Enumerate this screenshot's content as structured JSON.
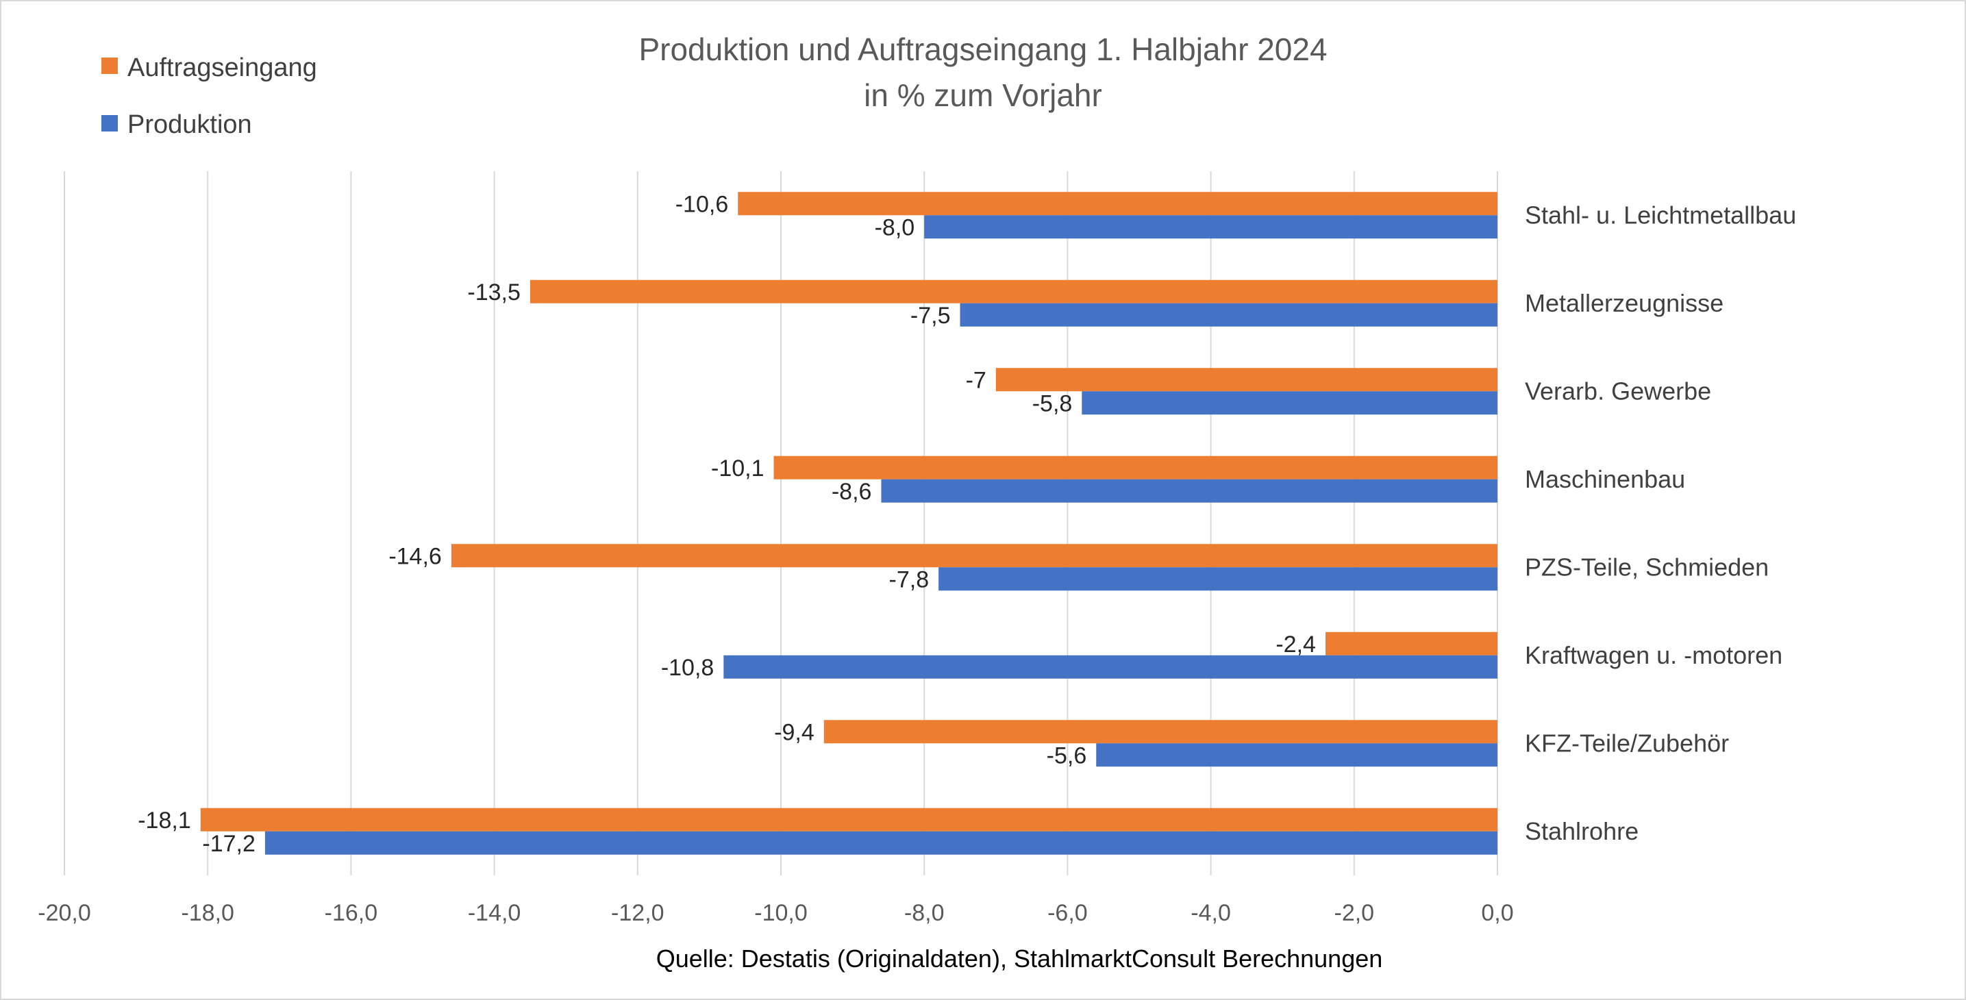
{
  "chart_data": {
    "type": "bar",
    "orientation": "horizontal",
    "title": "Produktion und Auftragseingang 1. Halbjahr 2024",
    "subtitle": "in % zum Vorjahr",
    "categories": [
      "Stahl- u. Leichtmetallbau",
      "Metallerzeugnisse",
      "Verarb. Gewerbe",
      "Maschinenbau",
      "PZS-Teile, Schmieden",
      "Kraftwagen u. -motoren",
      "KFZ-Teile/Zubehör",
      "Stahlrohre"
    ],
    "series": [
      {
        "name": "Auftragseingang",
        "color": "#ED7D31",
        "values": [
          -10.6,
          -13.5,
          -7,
          -10.1,
          -14.6,
          -2.4,
          -9.4,
          -18.1
        ],
        "labels": [
          "-10,6",
          "-13,5",
          "-7",
          "-10,1",
          "-14,6",
          "-2,4",
          "-9,4",
          "-18,1"
        ]
      },
      {
        "name": "Produktion",
        "color": "#4472C4",
        "values": [
          -8.0,
          -7.5,
          -5.8,
          -8.6,
          -7.8,
          -10.8,
          -5.6,
          -17.2
        ],
        "labels": [
          "-8,0",
          "-7,5",
          "-5,8",
          "-8,6",
          "-7,8",
          "-10,8",
          "-5,6",
          "-17,2"
        ]
      }
    ],
    "xlim": [
      -20,
      0
    ],
    "xticks": [
      "-20,0",
      "-18,0",
      "-16,0",
      "-14,0",
      "-12,0",
      "-10,0",
      "-8,0",
      "-6,0",
      "-4,0",
      "-2,0",
      "0,0"
    ],
    "grid": "vertical",
    "legend": "top-left",
    "source": "Quelle: Destatis (Originaldaten), StahlmarktConsult Berechnungen"
  }
}
